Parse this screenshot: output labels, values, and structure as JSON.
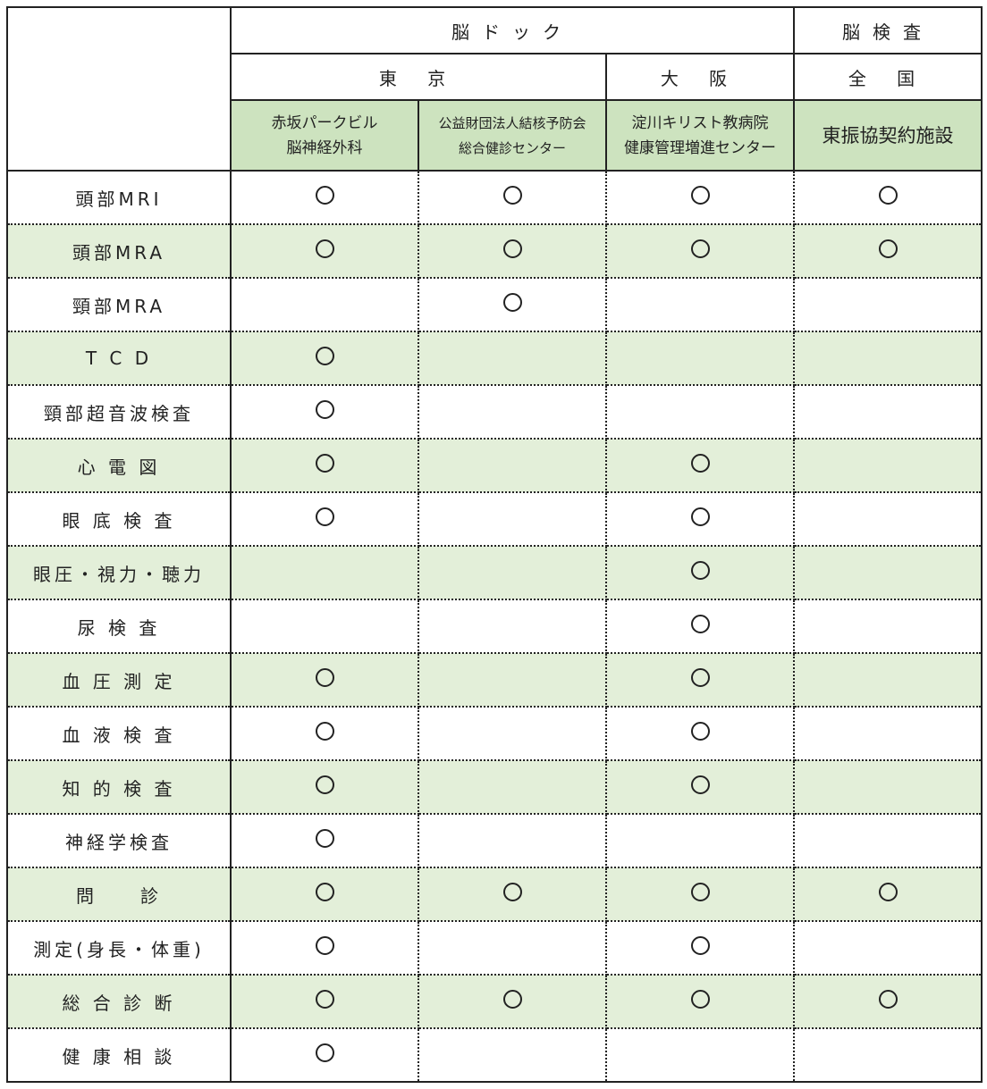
{
  "header": {
    "group1": "脳ドック",
    "group2": "脳検査",
    "tokyo": "東 京",
    "osaka": "大 阪",
    "zenkoku": "全 国",
    "facilities": [
      {
        "line1": "赤坂パークビル",
        "line2": "脳神経外科"
      },
      {
        "line1": "公益財団法人結核予防会",
        "line2": "総合健診センター"
      },
      {
        "line1": "淀川キリスト教病院",
        "line2": "健康管理増進センター"
      },
      {
        "line1": "東振協契約施設",
        "line2": ""
      }
    ]
  },
  "rows": [
    {
      "label": "頭部MRI",
      "marks": [
        true,
        true,
        true,
        true
      ]
    },
    {
      "label": "頭部MRA",
      "marks": [
        true,
        true,
        true,
        true
      ]
    },
    {
      "label": "頸部MRA",
      "marks": [
        false,
        true,
        false,
        false
      ]
    },
    {
      "label": "T C D",
      "marks": [
        true,
        false,
        false,
        false
      ]
    },
    {
      "label": "頸部超音波検査",
      "marks": [
        true,
        false,
        false,
        false
      ]
    },
    {
      "label": "心 電 図",
      "marks": [
        true,
        false,
        true,
        false
      ]
    },
    {
      "label": "眼 底 検 査",
      "marks": [
        true,
        false,
        true,
        false
      ]
    },
    {
      "label": "眼圧・視力・聴力",
      "marks": [
        false,
        false,
        true,
        false
      ]
    },
    {
      "label": "尿 検 査",
      "marks": [
        false,
        false,
        true,
        false
      ]
    },
    {
      "label": "血 圧 測 定",
      "marks": [
        true,
        false,
        true,
        false
      ]
    },
    {
      "label": "血 液 検 査",
      "marks": [
        true,
        false,
        true,
        false
      ]
    },
    {
      "label": "知 的 検 査",
      "marks": [
        true,
        false,
        true,
        false
      ]
    },
    {
      "label": "神経学検査",
      "marks": [
        true,
        false,
        false,
        false
      ]
    },
    {
      "label": "問　　診",
      "marks": [
        true,
        true,
        true,
        true
      ]
    },
    {
      "label": "測定(身長・体重)",
      "marks": [
        true,
        false,
        true,
        false
      ]
    },
    {
      "label": "総 合 診 断",
      "marks": [
        true,
        true,
        true,
        true
      ]
    },
    {
      "label": "健 康 相 談",
      "marks": [
        true,
        false,
        false,
        false
      ]
    }
  ],
  "mark_symbol": "circle-icon",
  "colors": {
    "header_green": "#cde3bf",
    "row_green": "#e3efd9"
  }
}
